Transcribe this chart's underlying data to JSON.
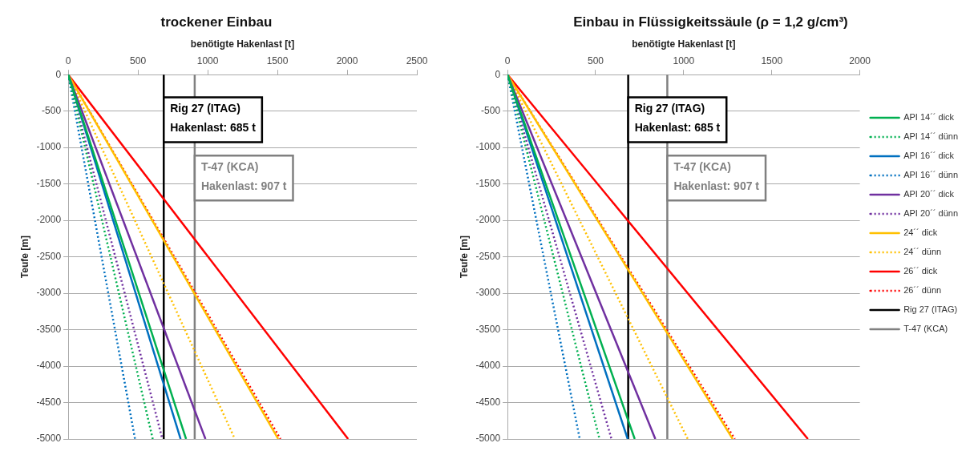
{
  "chart_data": [
    {
      "type": "line",
      "title": "trockener Einbau",
      "xlabel": "benötigte Hakenlast [t]",
      "ylabel": "Teufe [m]",
      "xlim": [
        0,
        2500
      ],
      "xticks": [
        0,
        500,
        1000,
        1500,
        2000,
        2500
      ],
      "ylim": [
        -5000,
        0
      ],
      "yticks": [
        0,
        -500,
        -1000,
        -1500,
        -2000,
        -2500,
        -3000,
        -3500,
        -4000,
        -4500,
        -5000
      ],
      "grid": "y",
      "legend": false,
      "marker": "none",
      "series": [
        {
          "color": "#00b050",
          "line_style": "solid",
          "x": [
            0,
            845
          ],
          "values": [
            0,
            -5000
          ]
        },
        {
          "color": "#00b050",
          "line_style": "dotted",
          "x": [
            0,
            606
          ],
          "values": [
            0,
            -5000
          ]
        },
        {
          "color": "#0070c0",
          "line_style": "solid",
          "x": [
            0,
            806
          ],
          "values": [
            0,
            -5000
          ]
        },
        {
          "color": "#0070c0",
          "line_style": "dotted",
          "x": [
            0,
            479
          ],
          "values": [
            0,
            -5000
          ]
        },
        {
          "color": "#7030a0",
          "line_style": "solid",
          "x": [
            0,
            984
          ],
          "values": [
            0,
            -5000
          ]
        },
        {
          "color": "#7030a0",
          "line_style": "dotted",
          "x": [
            0,
            675
          ],
          "values": [
            0,
            -5000
          ]
        },
        {
          "color": "#ffc000",
          "line_style": "solid",
          "x": [
            0,
            1506
          ],
          "values": [
            0,
            -5000
          ]
        },
        {
          "color": "#ffc000",
          "line_style": "dotted",
          "x": [
            0,
            1195
          ],
          "values": [
            0,
            -5000
          ]
        },
        {
          "color": "#ff0000",
          "line_style": "solid",
          "x": [
            0,
            2007
          ],
          "values": [
            0,
            -5000
          ]
        },
        {
          "color": "#ff0000",
          "line_style": "dotted",
          "x": [
            0,
            1522
          ],
          "values": [
            0,
            -5000
          ]
        },
        {
          "color": "#000000",
          "line_style": "solid",
          "x": [
            685,
            685
          ],
          "values": [
            0,
            -5000
          ]
        },
        {
          "color": "#808080",
          "line_style": "solid",
          "x": [
            907,
            907
          ],
          "values": [
            0,
            -5000
          ]
        }
      ],
      "annotations": [
        "Rig 27 (ITAG)",
        "Hakenlast: 685 t",
        "T-47 (KCA)",
        "Hakenlast: 907 t"
      ]
    },
    {
      "type": "line",
      "title": "Einbau in Flüssigkeitssäule (ρ = 1,2 g/cm³)",
      "xlabel": "benötigte Hakenlast [t]",
      "ylabel": "Teufe [m]",
      "xlim": [
        0,
        2000
      ],
      "xticks": [
        0,
        500,
        1000,
        1500,
        2000
      ],
      "ylim": [
        -5000,
        0
      ],
      "yticks": [
        0,
        -500,
        -1000,
        -1500,
        -2000,
        -2500,
        -3000,
        -3500,
        -4000,
        -4500,
        -5000
      ],
      "grid": "y",
      "legend": "right",
      "marker": "none",
      "series": [
        {
          "name": "API 14´´ dick",
          "color": "#00b050",
          "line_style": "solid",
          "x": [
            0,
            722
          ],
          "values": [
            0,
            -5000
          ]
        },
        {
          "name": "API 14´´ dünn",
          "color": "#00b050",
          "line_style": "dotted",
          "x": [
            0,
            522
          ],
          "values": [
            0,
            -5000
          ]
        },
        {
          "name": "API 16´´ dick",
          "color": "#0070c0",
          "line_style": "solid",
          "x": [
            0,
            682
          ],
          "values": [
            0,
            -5000
          ]
        },
        {
          "name": "API 16´´ dünn",
          "color": "#0070c0",
          "line_style": "dotted",
          "x": [
            0,
            410
          ],
          "values": [
            0,
            -5000
          ]
        },
        {
          "name": "API 20´´ dick",
          "color": "#7030a0",
          "line_style": "solid",
          "x": [
            0,
            839
          ],
          "values": [
            0,
            -5000
          ]
        },
        {
          "name": "API 20´´ dünn",
          "color": "#7030a0",
          "line_style": "dotted",
          "x": [
            0,
            590
          ],
          "values": [
            0,
            -5000
          ]
        },
        {
          "name": "24´´ dick",
          "color": "#ffc000",
          "line_style": "solid",
          "x": [
            0,
            1278
          ],
          "values": [
            0,
            -5000
          ]
        },
        {
          "name": "24´´ dünn",
          "color": "#ffc000",
          "line_style": "dotted",
          "x": [
            0,
            1023
          ],
          "values": [
            0,
            -5000
          ]
        },
        {
          "name": "26´´ dick",
          "color": "#ff0000",
          "line_style": "solid",
          "x": [
            0,
            1705
          ],
          "values": [
            0,
            -5000
          ]
        },
        {
          "name": "26´´ dünn",
          "color": "#ff0000",
          "line_style": "dotted",
          "x": [
            0,
            1290
          ],
          "values": [
            0,
            -5000
          ]
        },
        {
          "name": "Rig 27 (ITAG)",
          "color": "#000000",
          "line_style": "solid",
          "x": [
            685,
            685
          ],
          "values": [
            0,
            -5000
          ]
        },
        {
          "name": "T-47 (KCA)",
          "color": "#808080",
          "line_style": "solid",
          "x": [
            907,
            907
          ],
          "values": [
            0,
            -5000
          ]
        }
      ],
      "annotations": [
        "Rig 27 (ITAG)",
        "Hakenlast: 685 t",
        "T-47 (KCA)",
        "Hakenlast: 907 t"
      ]
    }
  ]
}
